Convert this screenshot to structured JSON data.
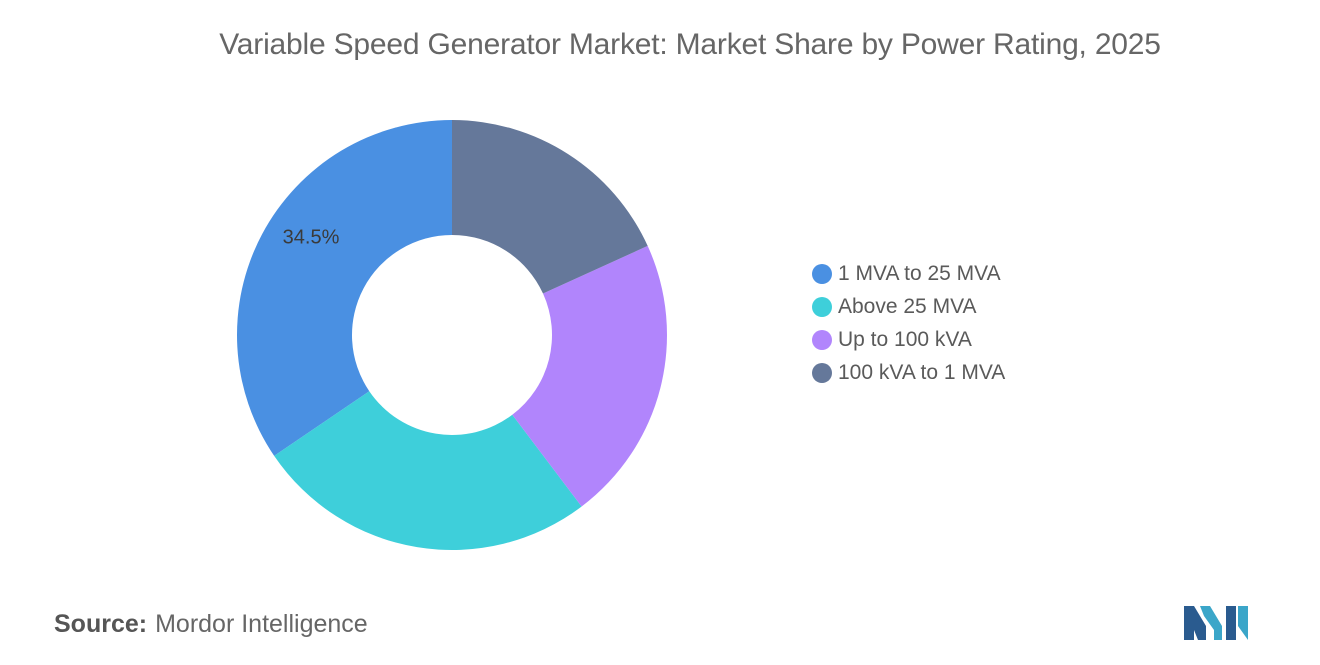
{
  "title": "Variable Speed Generator Market: Market Share by Power Rating, 2025",
  "source": {
    "label": "Source:",
    "value": "Mordor Intelligence"
  },
  "chart_data": {
    "type": "pie",
    "variant": "donut",
    "title": "Variable Speed Generator Market: Market Share by Power Rating, 2025",
    "categories": [
      "1 MVA to 25 MVA",
      "Above 25 MVA",
      "Up to 100 kVA",
      "100 kVA to 1 MVA"
    ],
    "values": [
      34.5,
      25.8,
      21.5,
      18.2
    ],
    "colors": [
      "#4a90e2",
      "#3ecfda",
      "#b185fc",
      "#65789a"
    ],
    "visible_labels": [
      "34.5%",
      "",
      "",
      ""
    ],
    "legend_position": "right"
  }
}
